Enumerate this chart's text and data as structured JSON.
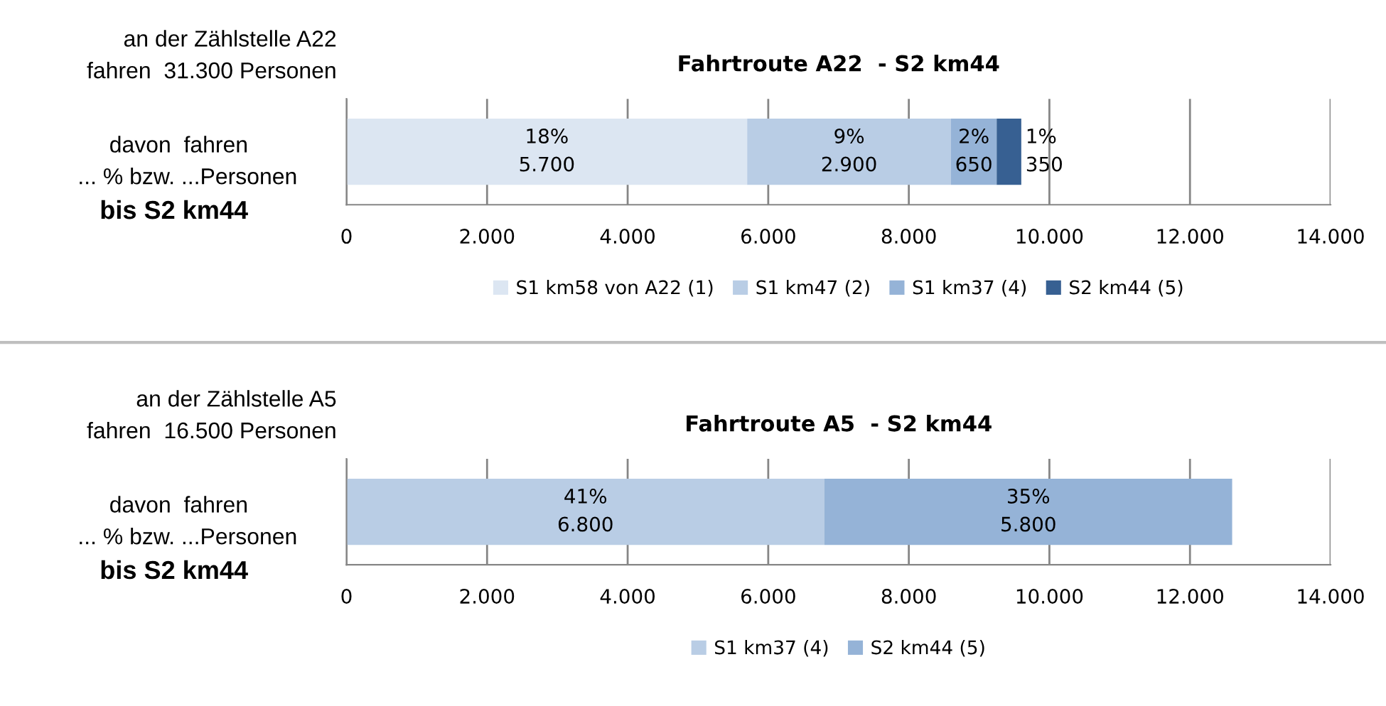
{
  "chart_data": [
    {
      "type": "bar",
      "orientation": "horizontal",
      "stacked": true,
      "title": "Fahrtroute A22  - S2 km44",
      "categories": [
        null
      ],
      "series": [
        {
          "name": "S1 km58 von A22 (1)",
          "color": "#dce6f2",
          "values": [
            5700
          ],
          "value_labels": [
            "18%\n5.700"
          ]
        },
        {
          "name": "S1 km47 (2)",
          "color": "#b9cde5",
          "values": [
            2900
          ],
          "value_labels": [
            "9%\n2.900"
          ]
        },
        {
          "name": "S1 km37 (4)",
          "color": "#95b3d7",
          "values": [
            650
          ],
          "value_labels": [
            "2%\n650"
          ]
        },
        {
          "name": "S2 km44 (5)",
          "color": "#376092",
          "values": [
            350
          ],
          "value_labels": [
            "1%\n350"
          ]
        }
      ],
      "xlim": [
        0,
        14000
      ],
      "xticks": [
        0,
        {
          "value": 2000,
          "label": "2.000"
        },
        {
          "value": 4000,
          "label": "4.000"
        },
        {
          "value": 6000,
          "label": "6.000"
        },
        {
          "value": 8000,
          "label": "8.000"
        },
        {
          "value": 10000,
          "label": "10.000"
        },
        {
          "value": 12000,
          "label": "12.000"
        },
        {
          "value": 14000,
          "label": "14.000"
        }
      ],
      "grid": "x",
      "legend": "bottom",
      "tick_labels": "x",
      "annotations": [
        "an der Zählstelle A22",
        "fahren  31.300 Personen",
        "davon  fahren",
        "... % bzw. ...Personen",
        "bis S2 km44"
      ]
    },
    {
      "type": "bar",
      "orientation": "horizontal",
      "stacked": true,
      "title": "Fahrtroute A5  - S2 km44",
      "categories": [
        null
      ],
      "series": [
        {
          "name": "S1 km37 (4)",
          "color": "#b9cde5",
          "values": [
            6800
          ],
          "value_labels": [
            "41%\n6.800"
          ]
        },
        {
          "name": "S2 km44 (5)",
          "color": "#95b3d7",
          "values": [
            5800
          ],
          "value_labels": [
            "35%\n5.800"
          ]
        }
      ],
      "xlim": [
        0,
        14000
      ],
      "xticks": [
        0,
        {
          "value": 2000,
          "label": "2.000"
        },
        {
          "value": 4000,
          "label": "4.000"
        },
        {
          "value": 6000,
          "label": "6.000"
        },
        {
          "value": 8000,
          "label": "8.000"
        },
        {
          "value": 10000,
          "label": "10.000"
        },
        {
          "value": 12000,
          "label": "12.000"
        },
        {
          "value": 14000,
          "label": "14.000"
        }
      ],
      "grid": "x",
      "legend": "bottom",
      "tick_labels": "x",
      "annotations": [
        "an der Zählstelle A5",
        "fahren  16.500 Personen",
        "davon  fahren",
        "... % bzw. ...Personen",
        "bis S2 km44"
      ]
    }
  ]
}
